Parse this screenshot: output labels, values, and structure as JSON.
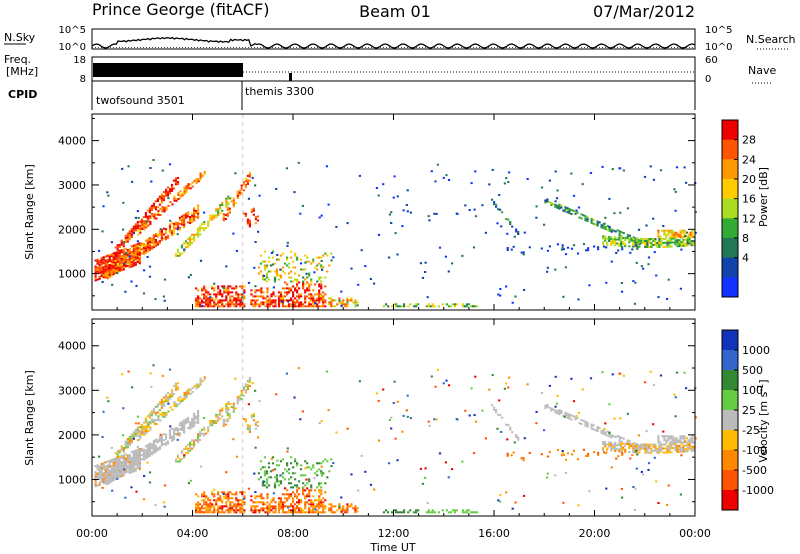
{
  "header": {
    "station": "Prince George (fitACF)",
    "beam": "Beam 01",
    "date": "07/Mar/2012"
  },
  "noise_panel": {
    "left_label": "N.Sky",
    "left_ticks": [
      "10^5",
      "10^0"
    ],
    "right_ticks": [
      "10^5",
      "10^0"
    ],
    "right_label": "N.Search"
  },
  "freq_panel": {
    "left_label_1": "Freq.",
    "left_label_2": "[MHz]",
    "left_ticks": [
      "18",
      "8"
    ],
    "right_ticks": [
      "60",
      "0"
    ],
    "right_label": "Nave"
  },
  "cpid_panel": {
    "label": "CPID",
    "modes": [
      {
        "name": "twofsound 3501",
        "start_hour": 0
      },
      {
        "name": "themis 3300",
        "start_hour": 6
      }
    ]
  },
  "chart_data": [
    {
      "type": "heatmap",
      "name": "power",
      "ylabel": "Slant Range [km]",
      "ylim": [
        180,
        4600
      ],
      "yticks": [
        1000,
        2000,
        3000,
        4000
      ],
      "colorbar": {
        "label": "Power [dB]",
        "ticks": [
          "28",
          "24",
          "20",
          "16",
          "12",
          "8",
          "4"
        ],
        "colors": [
          "#ee0000",
          "#ff5500",
          "#ff9900",
          "#ffcc00",
          "#aadd22",
          "#33aa33",
          "#227755",
          "#1144aa",
          "#1133ff"
        ]
      }
    },
    {
      "type": "heatmap",
      "name": "velocity",
      "ylabel": "Slant Range [km]",
      "ylim": [
        180,
        4600
      ],
      "yticks": [
        1000,
        2000,
        3000,
        4000
      ],
      "xlabel": "Time UT",
      "xticks": [
        "00:00",
        "04:00",
        "08:00",
        "12:00",
        "16:00",
        "20:00",
        "00:00"
      ],
      "colorbar": {
        "label": "Velocity [m s^-1]",
        "ticks": [
          "1000",
          "500",
          "100",
          "25",
          "-25",
          "-100",
          "-500",
          "-1000"
        ],
        "colors": [
          "#1133bb",
          "#3366cc",
          "#338833",
          "#66cc44",
          "#bbbbbb",
          "#ffbb00",
          "#ff8800",
          "#ff5500",
          "#ee0000"
        ]
      }
    }
  ]
}
